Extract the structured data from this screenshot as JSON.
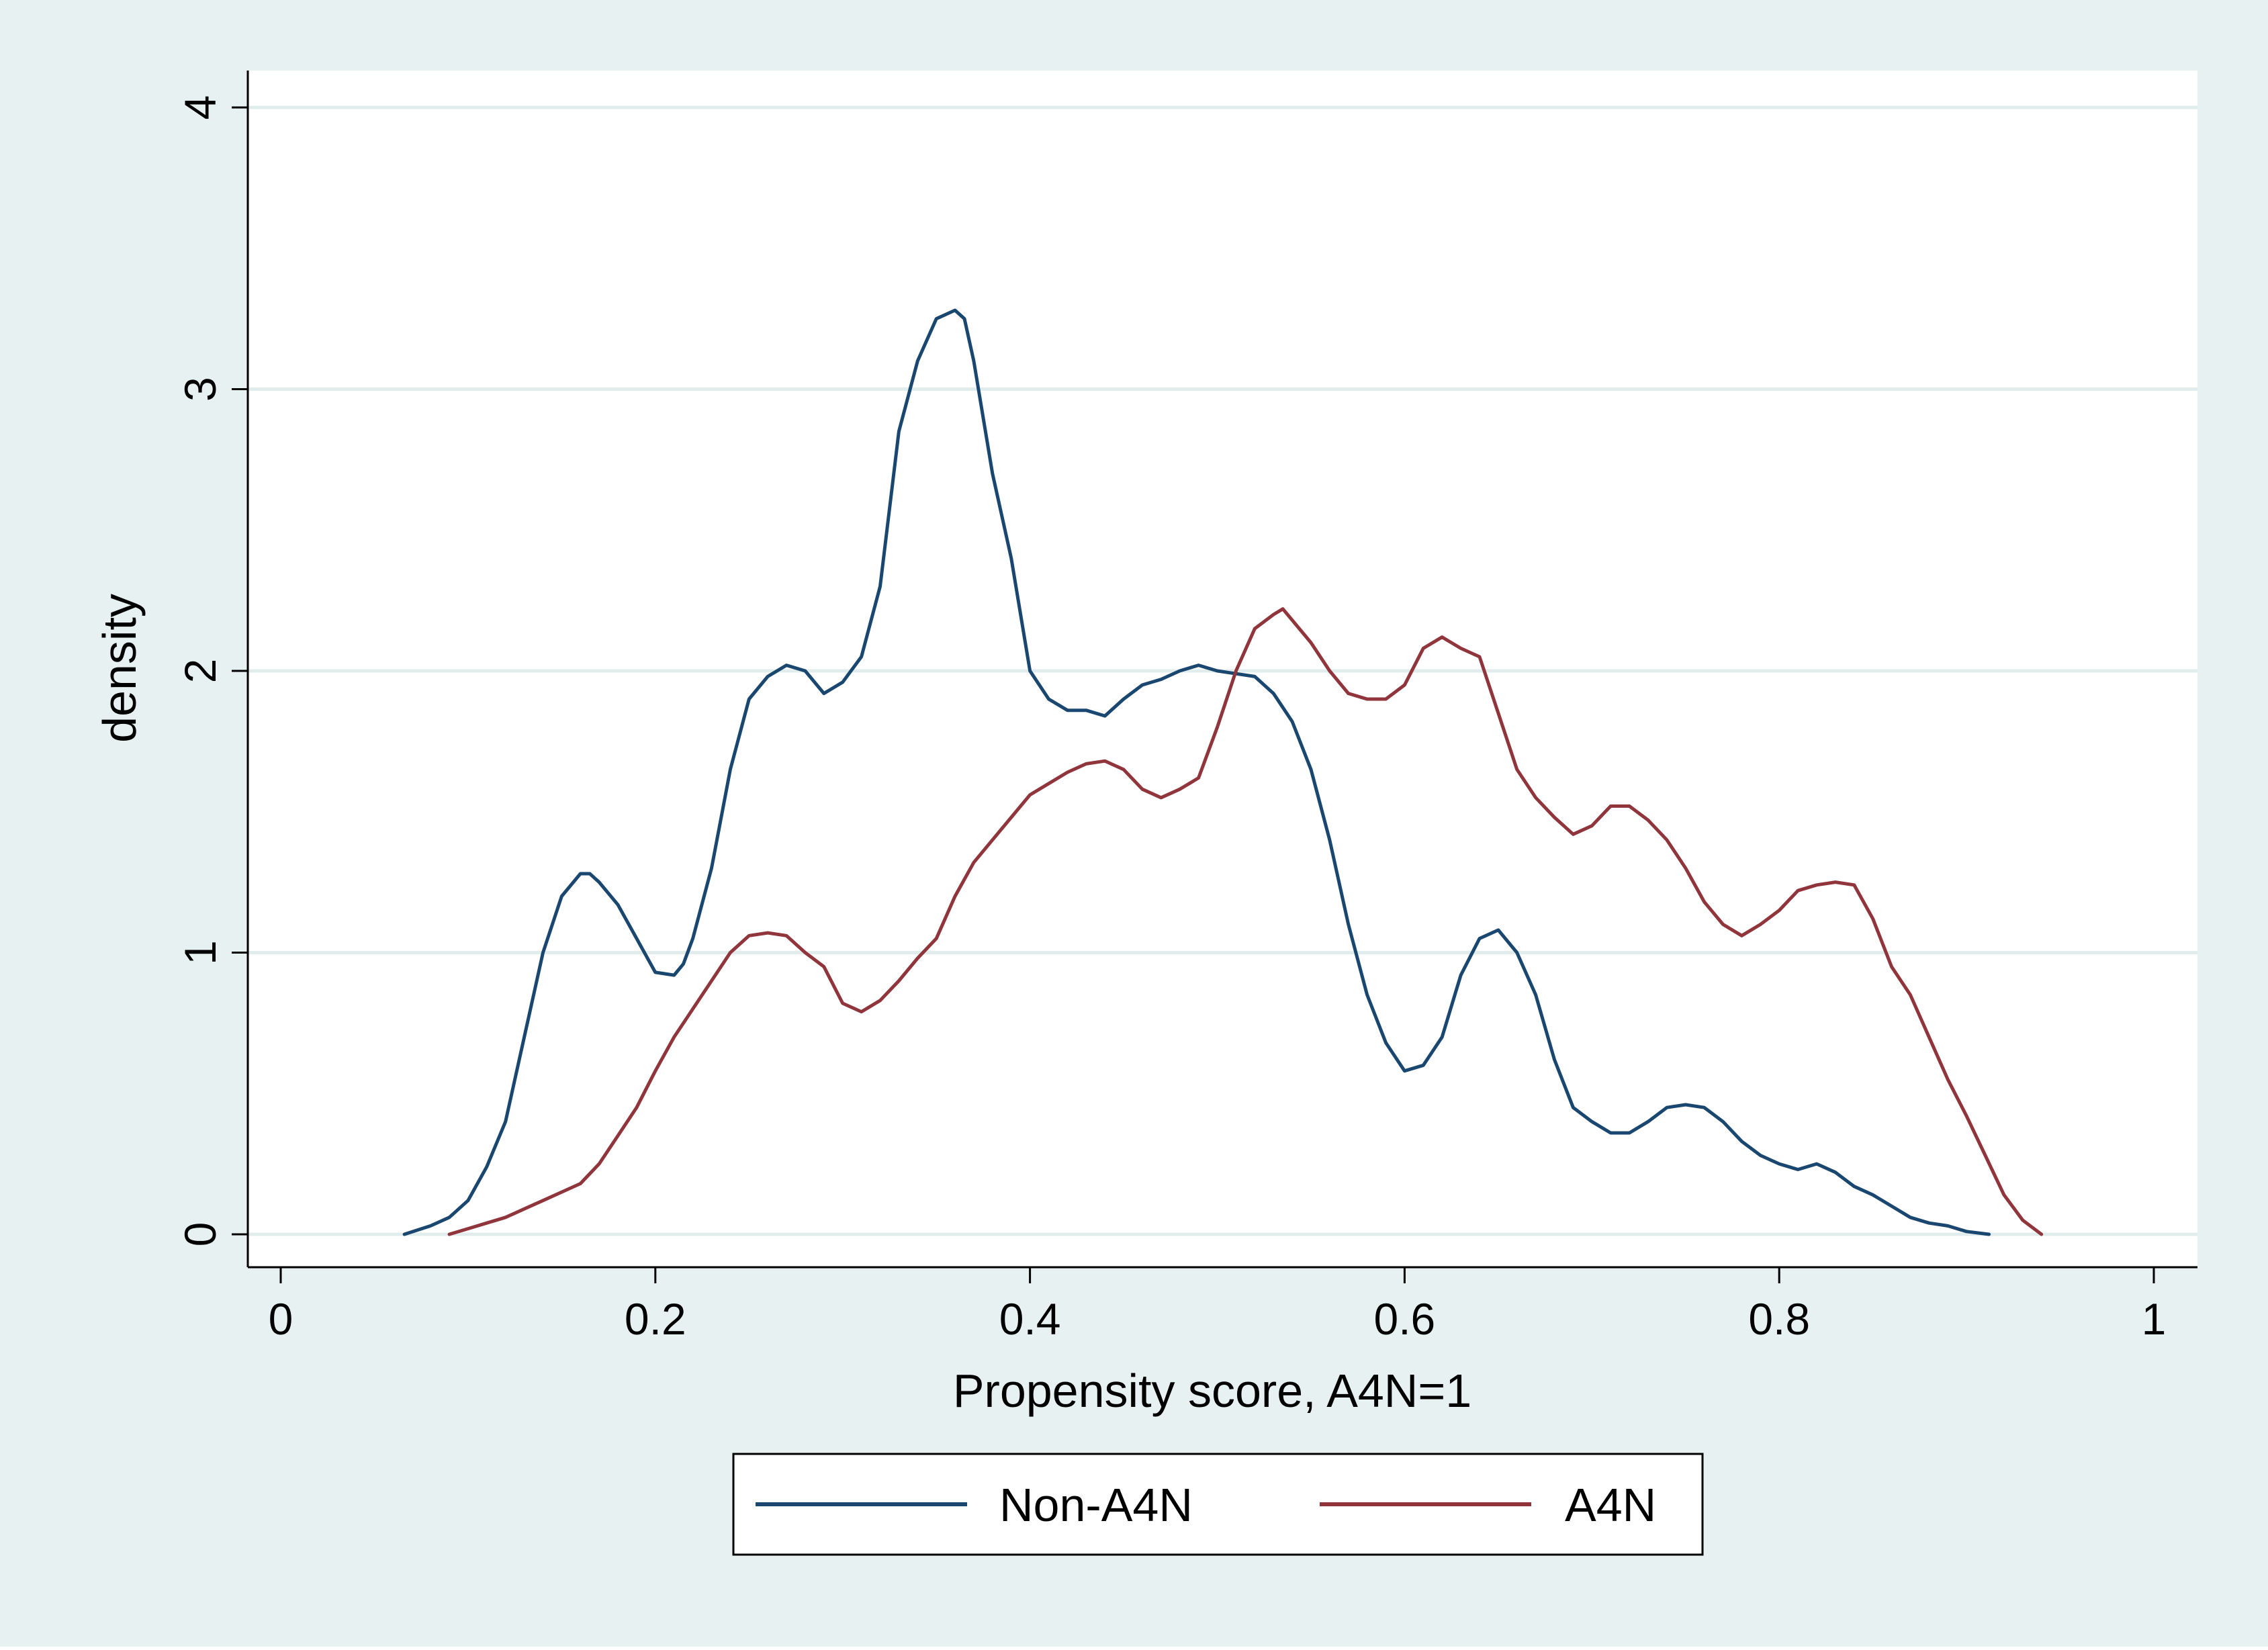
{
  "colors": {
    "outer_background": "#e7f1f1",
    "plot_background": "#ffffff",
    "gridline": "#e1ecec",
    "axis": "#000000",
    "non_a4n": "#1a476f",
    "a4n": "#90353b"
  },
  "chart_data": {
    "type": "line",
    "title": "",
    "xlabel": "Propensity score, A4N=1",
    "ylabel": "density",
    "xlim": [
      0,
      1
    ],
    "ylim": [
      0,
      4
    ],
    "xticks": [
      0,
      0.2,
      0.4,
      0.6,
      0.8,
      1
    ],
    "xtick_labels": [
      "0",
      "0.2",
      "0.4",
      "0.6",
      "0.8",
      "1"
    ],
    "yticks": [
      0,
      1,
      2,
      3,
      4
    ],
    "ytick_labels": [
      "0",
      "1",
      "2",
      "3",
      "4"
    ],
    "grid": "horizontal",
    "legend_position": "bottom",
    "series": [
      {
        "name": "Non-A4N",
        "color": "#1a476f",
        "x": [
          0.066,
          0.08,
          0.09,
          0.1,
          0.11,
          0.12,
          0.13,
          0.14,
          0.15,
          0.16,
          0.165,
          0.17,
          0.18,
          0.19,
          0.2,
          0.21,
          0.215,
          0.22,
          0.23,
          0.24,
          0.25,
          0.26,
          0.27,
          0.28,
          0.29,
          0.3,
          0.31,
          0.32,
          0.33,
          0.34,
          0.35,
          0.36,
          0.365,
          0.37,
          0.38,
          0.39,
          0.4,
          0.41,
          0.42,
          0.43,
          0.44,
          0.45,
          0.46,
          0.47,
          0.48,
          0.49,
          0.5,
          0.51,
          0.52,
          0.53,
          0.54,
          0.55,
          0.56,
          0.57,
          0.58,
          0.59,
          0.6,
          0.61,
          0.62,
          0.63,
          0.64,
          0.65,
          0.66,
          0.67,
          0.68,
          0.69,
          0.7,
          0.71,
          0.72,
          0.73,
          0.74,
          0.75,
          0.76,
          0.77,
          0.78,
          0.79,
          0.8,
          0.81,
          0.82,
          0.83,
          0.84,
          0.85,
          0.86,
          0.87,
          0.88,
          0.89,
          0.9,
          0.912
        ],
        "values": [
          0,
          0.03,
          0.06,
          0.12,
          0.24,
          0.4,
          0.7,
          1.0,
          1.2,
          1.28,
          1.28,
          1.25,
          1.17,
          1.05,
          0.93,
          0.92,
          0.96,
          1.05,
          1.3,
          1.65,
          1.9,
          1.98,
          2.02,
          2.0,
          1.92,
          1.96,
          2.05,
          2.3,
          2.85,
          3.1,
          3.25,
          3.28,
          3.25,
          3.1,
          2.7,
          2.4,
          2.0,
          1.9,
          1.86,
          1.86,
          1.84,
          1.9,
          1.95,
          1.97,
          2.0,
          2.02,
          2.0,
          1.99,
          1.98,
          1.92,
          1.82,
          1.65,
          1.4,
          1.1,
          0.85,
          0.68,
          0.58,
          0.6,
          0.7,
          0.92,
          1.05,
          1.08,
          1.0,
          0.85,
          0.62,
          0.45,
          0.4,
          0.36,
          0.36,
          0.4,
          0.45,
          0.46,
          0.45,
          0.4,
          0.33,
          0.28,
          0.25,
          0.23,
          0.25,
          0.22,
          0.17,
          0.14,
          0.1,
          0.06,
          0.04,
          0.03,
          0.01,
          0
        ]
      },
      {
        "name": "A4N",
        "color": "#90353b",
        "x": [
          0.09,
          0.1,
          0.11,
          0.12,
          0.13,
          0.14,
          0.15,
          0.16,
          0.17,
          0.18,
          0.19,
          0.2,
          0.21,
          0.22,
          0.23,
          0.24,
          0.25,
          0.26,
          0.27,
          0.28,
          0.29,
          0.3,
          0.31,
          0.32,
          0.33,
          0.34,
          0.35,
          0.36,
          0.37,
          0.38,
          0.39,
          0.4,
          0.41,
          0.42,
          0.43,
          0.44,
          0.45,
          0.46,
          0.47,
          0.48,
          0.49,
          0.5,
          0.51,
          0.52,
          0.53,
          0.535,
          0.54,
          0.55,
          0.56,
          0.57,
          0.58,
          0.59,
          0.6,
          0.61,
          0.62,
          0.63,
          0.64,
          0.65,
          0.66,
          0.67,
          0.68,
          0.69,
          0.7,
          0.71,
          0.72,
          0.73,
          0.74,
          0.75,
          0.76,
          0.77,
          0.78,
          0.79,
          0.8,
          0.81,
          0.82,
          0.83,
          0.84,
          0.85,
          0.86,
          0.87,
          0.88,
          0.89,
          0.9,
          0.91,
          0.92,
          0.93,
          0.94
        ],
        "values": [
          0,
          0.02,
          0.04,
          0.06,
          0.09,
          0.12,
          0.15,
          0.18,
          0.25,
          0.35,
          0.45,
          0.58,
          0.7,
          0.8,
          0.9,
          1.0,
          1.06,
          1.07,
          1.06,
          1.0,
          0.95,
          0.82,
          0.79,
          0.83,
          0.9,
          0.98,
          1.05,
          1.2,
          1.32,
          1.4,
          1.48,
          1.56,
          1.6,
          1.64,
          1.67,
          1.68,
          1.65,
          1.58,
          1.55,
          1.58,
          1.62,
          1.8,
          2.0,
          2.15,
          2.2,
          2.22,
          2.18,
          2.1,
          2.0,
          1.92,
          1.9,
          1.9,
          1.95,
          2.08,
          2.12,
          2.08,
          2.05,
          1.85,
          1.65,
          1.55,
          1.48,
          1.42,
          1.45,
          1.52,
          1.52,
          1.47,
          1.4,
          1.3,
          1.18,
          1.1,
          1.06,
          1.1,
          1.15,
          1.22,
          1.24,
          1.25,
          1.24,
          1.12,
          0.95,
          0.85,
          0.7,
          0.55,
          0.42,
          0.28,
          0.14,
          0.05,
          0
        ]
      }
    ]
  }
}
